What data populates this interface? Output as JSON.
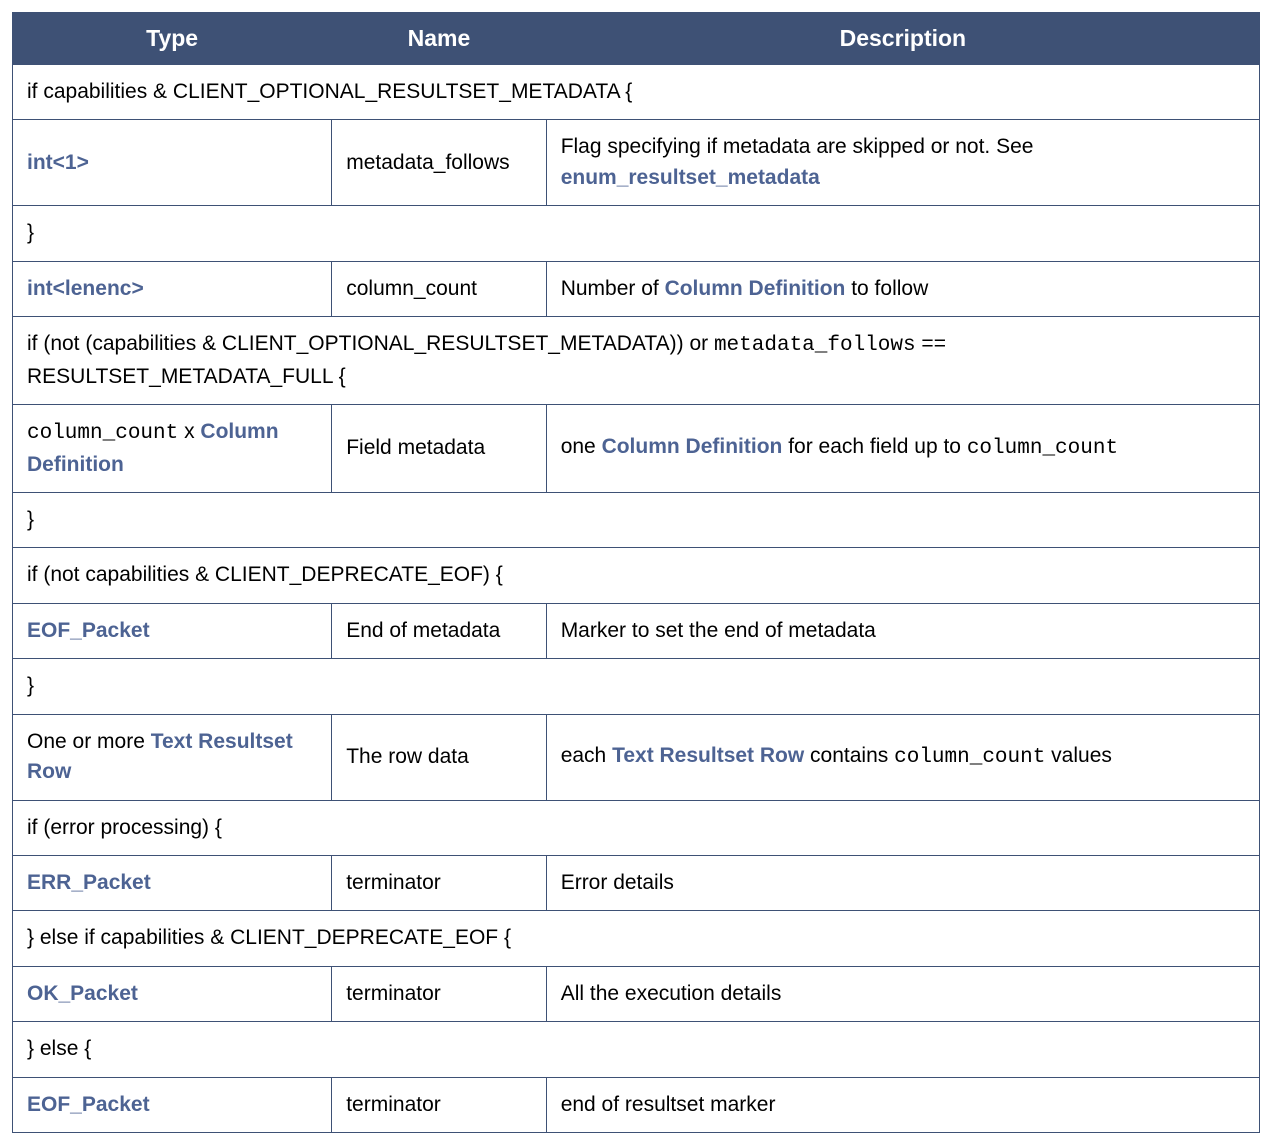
{
  "colors": {
    "header_bg": "#3e5175",
    "header_fg": "#ffffff",
    "border": "#3e5175",
    "link": "#4d6393",
    "cell_bg": "#ffffff",
    "text": "#000000"
  },
  "columns": [
    {
      "label": "Type",
      "width_pct": 25.6
    },
    {
      "label": "Name",
      "width_pct": 17.2
    },
    {
      "label": "Description",
      "width_pct": 57.2
    }
  ],
  "rows": [
    {
      "kind": "span",
      "text": "if capabilities & CLIENT_OPTIONAL_RESULTSET_METADATA {"
    },
    {
      "kind": "cells",
      "type_segments": [
        {
          "text": "int<1>",
          "style": "link"
        }
      ],
      "name": "metadata_follows",
      "desc_segments": [
        {
          "text": "Flag specifying if metadata are skipped or not. See "
        },
        {
          "text": "enum_resultset_metadata",
          "style": "link"
        }
      ]
    },
    {
      "kind": "span",
      "text": "}"
    },
    {
      "kind": "cells",
      "type_segments": [
        {
          "text": "int<lenenc>",
          "style": "link"
        }
      ],
      "name": "column_count",
      "desc_segments": [
        {
          "text": "Number of "
        },
        {
          "text": "Column Definition",
          "style": "link"
        },
        {
          "text": " to follow"
        }
      ]
    },
    {
      "kind": "span",
      "segments": [
        {
          "text": "if (not (capabilities & CLIENT_OPTIONAL_RESULTSET_METADATA)) or "
        },
        {
          "text": "metadata_follows",
          "style": "mono"
        },
        {
          "text": " == RESULTSET_METADATA_FULL {"
        }
      ]
    },
    {
      "kind": "cells",
      "type_segments": [
        {
          "text": "column_count",
          "style": "mono"
        },
        {
          "text": " x "
        },
        {
          "text": "Column Definition",
          "style": "link"
        }
      ],
      "name": "Field metadata",
      "desc_segments": [
        {
          "text": "one "
        },
        {
          "text": "Column Definition",
          "style": "link"
        },
        {
          "text": " for each field up to "
        },
        {
          "text": "column_count",
          "style": "mono"
        }
      ]
    },
    {
      "kind": "span",
      "text": "}"
    },
    {
      "kind": "span",
      "text": "if (not capabilities & CLIENT_DEPRECATE_EOF) {"
    },
    {
      "kind": "cells",
      "type_segments": [
        {
          "text": "EOF_Packet",
          "style": "link"
        }
      ],
      "name": "End of metadata",
      "desc_segments": [
        {
          "text": "Marker to set the end of metadata"
        }
      ]
    },
    {
      "kind": "span",
      "text": "}"
    },
    {
      "kind": "cells",
      "type_segments": [
        {
          "text": "One or more "
        },
        {
          "text": "Text Resultset Row",
          "style": "link"
        }
      ],
      "name": "The row data",
      "desc_segments": [
        {
          "text": "each "
        },
        {
          "text": "Text Resultset Row",
          "style": "link"
        },
        {
          "text": " contains "
        },
        {
          "text": "column_count",
          "style": "mono"
        },
        {
          "text": " values"
        }
      ]
    },
    {
      "kind": "span",
      "text": "if (error processing) {"
    },
    {
      "kind": "cells",
      "type_segments": [
        {
          "text": "ERR_Packet",
          "style": "link"
        }
      ],
      "name": "terminator",
      "desc_segments": [
        {
          "text": "Error details"
        }
      ]
    },
    {
      "kind": "span",
      "text": "} else if capabilities & CLIENT_DEPRECATE_EOF {"
    },
    {
      "kind": "cells",
      "type_segments": [
        {
          "text": "OK_Packet",
          "style": "link"
        }
      ],
      "name": "terminator",
      "desc_segments": [
        {
          "text": "All the execution details"
        }
      ]
    },
    {
      "kind": "span",
      "text": "} else {"
    },
    {
      "kind": "cells",
      "type_segments": [
        {
          "text": "EOF_Packet",
          "style": "link"
        }
      ],
      "name": "terminator",
      "desc_segments": [
        {
          "text": "end of resultset marker"
        }
      ]
    }
  ]
}
